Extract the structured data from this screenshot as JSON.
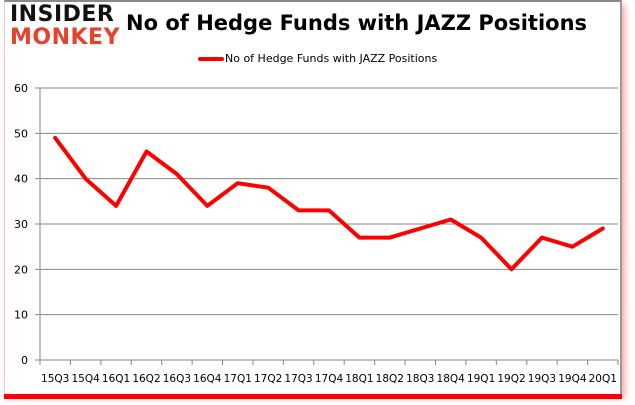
{
  "logo": {
    "line1": "INSIDER",
    "line2": "MONKEY"
  },
  "chart_data": {
    "type": "line",
    "title": "No of Hedge Funds with JAZZ Positions",
    "xlabel": "",
    "ylabel": "",
    "ylim": [
      0,
      60
    ],
    "yticks": [
      0,
      10,
      20,
      30,
      40,
      50,
      60
    ],
    "grid": true,
    "legend_position": "top",
    "categories": [
      "15Q3",
      "15Q4",
      "16Q1",
      "16Q2",
      "16Q3",
      "16Q4",
      "17Q1",
      "17Q2",
      "17Q3",
      "17Q4",
      "18Q1",
      "18Q2",
      "18Q3",
      "18Q4",
      "19Q1",
      "19Q2",
      "19Q3",
      "19Q4",
      "20Q1"
    ],
    "series": [
      {
        "name": "No of Hedge Funds with JAZZ Positions",
        "color": "#ff0000",
        "values": [
          49,
          40,
          34,
          46,
          41,
          34,
          39,
          38,
          33,
          33,
          27,
          27,
          29,
          31,
          27,
          20,
          27,
          25,
          29
        ]
      }
    ]
  }
}
